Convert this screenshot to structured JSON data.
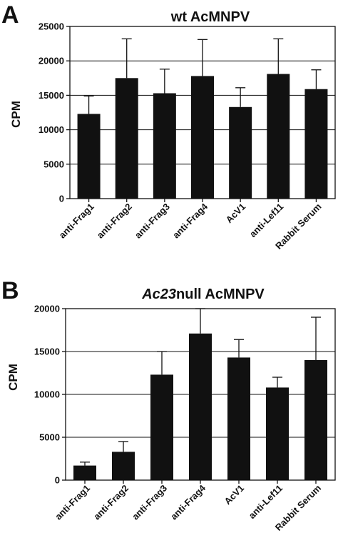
{
  "chart_data": [
    {
      "type": "bar",
      "panel_label": "A",
      "title": "wt AcMNPV",
      "title_italic_part": "",
      "title_rest": "wt AcMNPV",
      "ylabel": "CPM",
      "xlabel": "",
      "ylim": [
        0,
        25000
      ],
      "yticks": [
        0,
        5000,
        10000,
        15000,
        20000,
        25000
      ],
      "grid": true,
      "categories": [
        "anti-Frag1",
        "anti-Frag2",
        "anti-Frag3",
        "anti-Frag4",
        "AcV1",
        "anti-Lef11",
        "Rabbit Serum"
      ],
      "values": [
        12300,
        17500,
        15300,
        17800,
        13300,
        18100,
        15900
      ],
      "errors": [
        2600,
        5700,
        3500,
        5300,
        2800,
        5100,
        2800
      ],
      "bar_color": "#111111"
    },
    {
      "type": "bar",
      "panel_label": "B",
      "title": "Ac23null AcMNPV",
      "title_italic_part": "Ac23",
      "title_rest": "null AcMNPV",
      "ylabel": "CPM",
      "xlabel": "",
      "ylim": [
        0,
        20000
      ],
      "yticks": [
        0,
        5000,
        10000,
        15000,
        20000
      ],
      "grid": true,
      "categories": [
        "anti-Frag1",
        "anti-Frag2",
        "anti-Frag3",
        "anti-Frag4",
        "AcV1",
        "anti-Lef11",
        "Rabbit Serum"
      ],
      "values": [
        1700,
        3300,
        12300,
        17100,
        14300,
        10800,
        14000
      ],
      "errors": [
        400,
        1200,
        2700,
        2900,
        2100,
        1200,
        5000
      ],
      "bar_color": "#111111"
    }
  ]
}
